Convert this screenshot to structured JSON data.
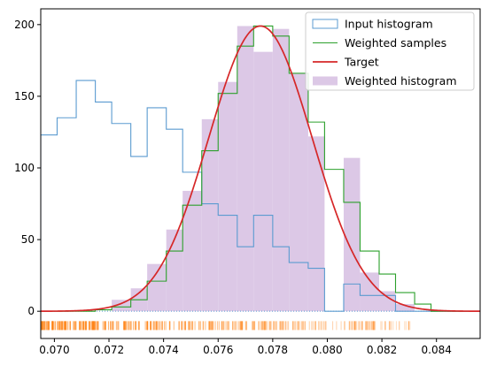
{
  "chart_data": {
    "type": "histogram",
    "title": "",
    "xlabel": "",
    "ylabel": "",
    "xlim": [
      0.0695,
      0.0856
    ],
    "ylim": [
      -19,
      211
    ],
    "grid": false,
    "legend_position": "top-right",
    "x_ticks": [
      "0.070",
      "0.072",
      "0.074",
      "0.076",
      "0.078",
      "0.080",
      "0.082",
      "0.084"
    ],
    "x_tick_values": [
      0.07,
      0.072,
      0.074,
      0.076,
      0.078,
      0.08,
      0.082,
      0.084
    ],
    "y_ticks": [
      "0",
      "50",
      "100",
      "150",
      "200"
    ],
    "y_tick_values": [
      0,
      50,
      100,
      150,
      200
    ],
    "bin_edges": [
      0.0695,
      0.0701,
      0.0708,
      0.0715,
      0.0721,
      0.0728,
      0.0734,
      0.0741,
      0.0747,
      0.0754,
      0.076,
      0.0767,
      0.0773,
      0.078,
      0.0786,
      0.0793,
      0.0799,
      0.0806,
      0.0812,
      0.0819,
      0.0825,
      0.0832,
      0.0838,
      0.0845,
      0.0851,
      0.0856
    ],
    "series": [
      {
        "name": "Input histogram",
        "type": "step",
        "color": "#5b9bd0",
        "values": [
          123,
          135,
          161,
          146,
          131,
          108,
          142,
          127,
          97,
          75,
          67,
          45,
          67,
          45,
          34,
          30,
          0,
          19,
          11,
          11,
          0,
          0,
          0,
          0,
          0
        ]
      },
      {
        "name": "Weighted samples",
        "type": "step",
        "color": "#2ca02c",
        "values": [
          0,
          0,
          0,
          1,
          3,
          8,
          21,
          42,
          74,
          112,
          152,
          185,
          199,
          192,
          166,
          132,
          99,
          76,
          42,
          26,
          13,
          5,
          0,
          0,
          0
        ]
      },
      {
        "name": "Target",
        "type": "line",
        "color": "#d62728",
        "mean": 0.07755,
        "sigma": 0.0019,
        "peak": 199
      },
      {
        "name": "Weighted histogram",
        "type": "bar",
        "color": "#dcc8e6",
        "values": [
          0,
          0,
          0,
          0,
          8,
          16,
          33,
          57,
          84,
          134,
          160,
          199,
          181,
          197,
          166,
          122,
          0,
          107,
          27,
          14,
          5,
          0,
          0,
          0,
          0
        ]
      }
    ],
    "rug": {
      "color": "#ff7f0e",
      "y_value": -10,
      "x_range": [
        0.0695,
        0.0831
      ]
    }
  }
}
